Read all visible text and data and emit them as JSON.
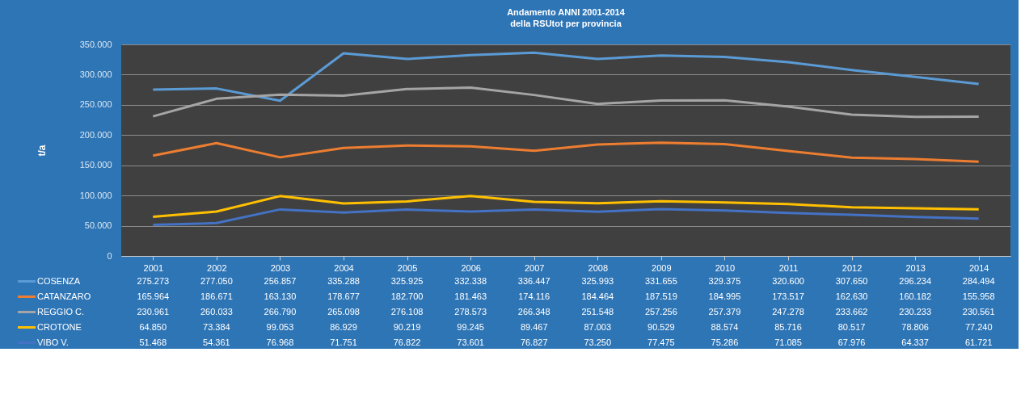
{
  "chart_data": {
    "type": "line",
    "title": "Andamento  ANNI 2001-2014",
    "subtitle": "della RSUtot  per provincia",
    "ylabel": "t/a",
    "categories": [
      "2001",
      "2002",
      "2003",
      "2004",
      "2005",
      "2006",
      "2007",
      "2008",
      "2009",
      "2010",
      "2011",
      "2012",
      "2013",
      "2014"
    ],
    "ylim": [
      0,
      350000
    ],
    "yticks": [
      0,
      {
        "value": 50000,
        "label": "50.000"
      },
      {
        "value": 100000,
        "label": "100.000"
      },
      {
        "value": 150000,
        "label": "150.000"
      },
      {
        "value": 200000,
        "label": "200.000"
      },
      {
        "value": 250000,
        "label": "250.000"
      },
      {
        "value": 300000,
        "label": "300.000"
      },
      {
        "value": 350000,
        "label": "350.000"
      }
    ],
    "grid": "y",
    "legend": "bottom",
    "series": [
      {
        "name": "COSENZA",
        "color": "#5b9bd5",
        "values": [
          275273,
          277050,
          256857,
          335288,
          325925,
          332338,
          336447,
          325993,
          331655,
          329375,
          320600,
          307650,
          296234,
          284494
        ],
        "value_labels": [
          "275.273",
          "277.050",
          "256.857",
          "335.288",
          "325.925",
          "332.338",
          "336.447",
          "325.993",
          "331.655",
          "329.375",
          "320.600",
          "307.650",
          "296.234",
          "284.494"
        ]
      },
      {
        "name": "CATANZARO",
        "color": "#ed7d31",
        "values": [
          165964,
          186671,
          163130,
          178677,
          182700,
          181463,
          174116,
          184464,
          187519,
          184995,
          173517,
          162630,
          160182,
          155958
        ],
        "value_labels": [
          "165.964",
          "186.671",
          "163.130",
          "178.677",
          "182.700",
          "181.463",
          "174.116",
          "184.464",
          "187.519",
          "184.995",
          "173.517",
          "162.630",
          "160.182",
          "155.958"
        ]
      },
      {
        "name": "REGGIO C.",
        "color": "#a5a5a5",
        "values": [
          230961,
          260033,
          266790,
          265098,
          276108,
          278573,
          266348,
          251548,
          257256,
          257379,
          247278,
          233662,
          230233,
          230561
        ],
        "value_labels": [
          "230.961",
          "260.033",
          "266.790",
          "265.098",
          "276.108",
          "278.573",
          "266.348",
          "251.548",
          "257.256",
          "257.379",
          "247.278",
          "233.662",
          "230.233",
          "230.561"
        ]
      },
      {
        "name": "CROTONE",
        "color": "#ffc000",
        "values": [
          64850,
          73384,
          99053,
          86929,
          90219,
          99245,
          89467,
          87003,
          90529,
          88574,
          85716,
          80517,
          78806,
          77240
        ],
        "value_labels": [
          "64.850",
          "73.384",
          "99.053",
          "86.929",
          "90.219",
          "99.245",
          "89.467",
          "87.003",
          "90.529",
          "88.574",
          "85.716",
          "80.517",
          "78.806",
          "77.240"
        ]
      },
      {
        "name": "VIBO V.",
        "color": "#4472c4",
        "values": [
          51468,
          54361,
          76968,
          71751,
          76822,
          73601,
          76827,
          73250,
          77475,
          75286,
          71085,
          67976,
          64337,
          61721
        ],
        "value_labels": [
          "51.468",
          "54.361",
          "76.968",
          "71.751",
          "76.822",
          "73.601",
          "76.827",
          "73.250",
          "77.475",
          "75.286",
          "71.085",
          "67.976",
          "64.337",
          "61.721"
        ]
      }
    ]
  }
}
